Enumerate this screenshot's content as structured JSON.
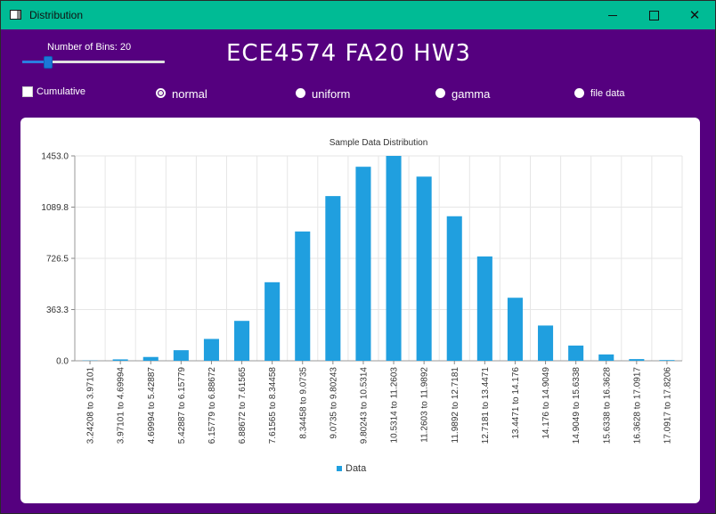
{
  "window": {
    "title": "Distribution",
    "minimize_glyph": "–",
    "maximize_glyph": "□",
    "close_glyph": "✕"
  },
  "controls": {
    "bins_label": "Number of Bins: 20",
    "bins_value": 20,
    "bins_fraction": 0.18,
    "heading": "ECE4574 FA20 HW3",
    "cumulative_label": "Cumulative",
    "cumulative_checked": false,
    "radio_options": [
      {
        "label": "normal",
        "checked": true
      },
      {
        "label": "uniform",
        "checked": false
      },
      {
        "label": "gamma",
        "checked": false
      },
      {
        "label": "file data",
        "checked": false
      }
    ]
  },
  "colors": {
    "titlebar": "#00bb95",
    "background": "#55007f",
    "bar": "#209fdf"
  },
  "chart_data": {
    "type": "bar",
    "title": "Sample Data Distribution",
    "categories": [
      "3.24208 to 3.97101",
      "3.97101 to 4.69994",
      "4.69994 to 5.42887",
      "5.42887 to 6.15779",
      "6.15779 to 6.88672",
      "6.88672 to 7.61565",
      "7.61565 to 8.34458",
      "8.34458 to 9.0735",
      "9.0735 to 9.80243",
      "9.80243 to 10.5314",
      "10.5314 to 11.2603",
      "11.2603 to 11.9892",
      "11.9892 to 12.7181",
      "12.7181 to 13.4471",
      "13.4471 to 14.176",
      "14.176 to 14.9049",
      "14.9049 to 15.6338",
      "15.6338 to 16.3628",
      "16.3628 to 17.0917",
      "17.0917 to 17.8206"
    ],
    "series": [
      {
        "name": "Data",
        "values": [
          2,
          10,
          27,
          75,
          155,
          283,
          557,
          917,
          1168,
          1376,
          1453,
          1306,
          1025,
          740,
          447,
          250,
          108,
          45,
          12,
          5
        ]
      }
    ],
    "yticks": [
      "0.0",
      "363.3",
      "726.5",
      "1089.8",
      "1453.0"
    ],
    "ylim": [
      0,
      1453
    ],
    "grid": true,
    "legend": "bottom-center"
  }
}
